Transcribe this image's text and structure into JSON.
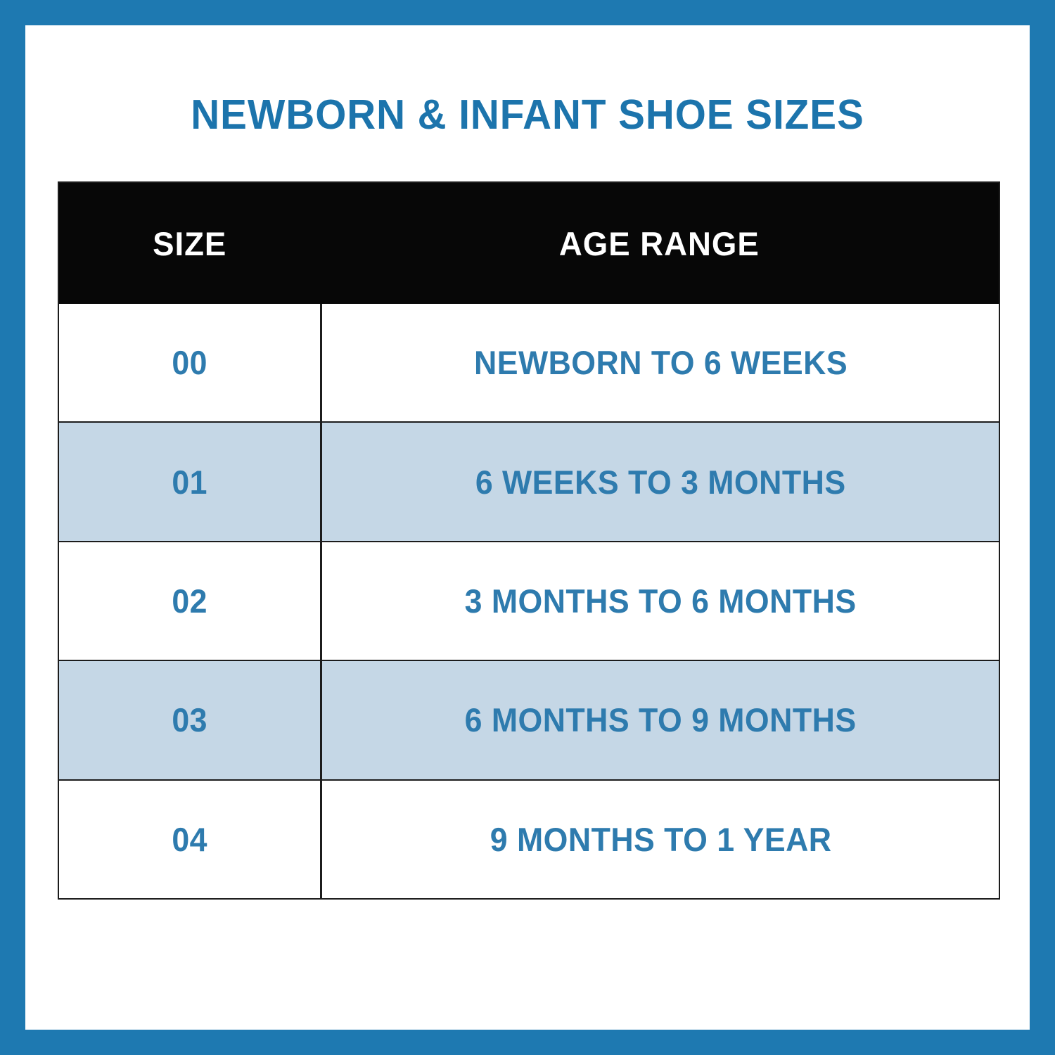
{
  "title": "NEWBORN & INFANT SHOE SIZES",
  "table": {
    "headers": {
      "size": "SIZE",
      "age": "AGE RANGE"
    },
    "rows": [
      {
        "size": "00",
        "age": "NEWBORN TO 6 WEEKS"
      },
      {
        "size": "01",
        "age": "6 WEEKS TO 3 MONTHS"
      },
      {
        "size": "02",
        "age": "3 MONTHS TO 6 MONTHS"
      },
      {
        "size": "03",
        "age": "6 MONTHS TO 9 MONTHS"
      },
      {
        "size": "04",
        "age": "9 MONTHS TO 1 YEAR"
      }
    ]
  },
  "colors": {
    "frame": "#1e79b1",
    "title": "#1c74ac",
    "header-bg": "#070707",
    "header-text": "#ffffff",
    "cell-text": "#2e7bae",
    "row-alt": "#c5d7e6",
    "row-base": "#ffffff",
    "grid": "#1c1c1c"
  }
}
